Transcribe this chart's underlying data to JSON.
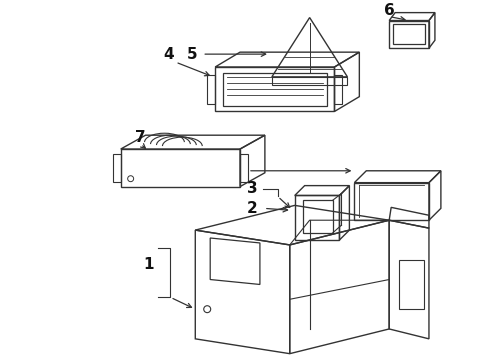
{
  "bg_color": "#ffffff",
  "line_color": "#333333",
  "label_color": "#111111",
  "figsize": [
    4.9,
    3.6
  ],
  "dpi": 100,
  "parts": {
    "labels": [
      "1",
      "2",
      "3",
      "4",
      "5",
      "6",
      "7"
    ],
    "fontsize": 11,
    "fontweight": "bold"
  }
}
